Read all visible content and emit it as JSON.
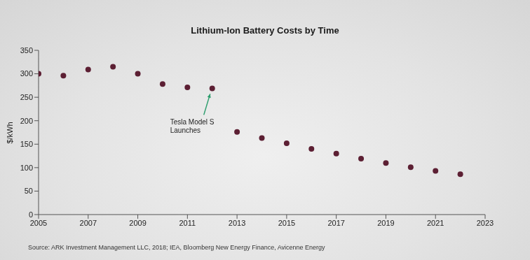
{
  "chart_data": {
    "type": "scatter",
    "title": "Lithium-Ion Battery Costs by Time",
    "y_label": "$/kWh",
    "source": "Source: ARK Investment Management LLC, 2018; IEA, Bloomberg New Energy Finance, Avicenne Energy",
    "x": [
      2005,
      2006,
      2007,
      2008,
      2009,
      2010,
      2011,
      2012,
      2013,
      2014,
      2015,
      2016,
      2017,
      2018,
      2019,
      2020,
      2021,
      2022
    ],
    "values": [
      300,
      296,
      309,
      315,
      300,
      278,
      271,
      269,
      176,
      163,
      152,
      140,
      130,
      119,
      110,
      101,
      93,
      86
    ],
    "color": "#5c1f33",
    "marker": "circle",
    "xlim": [
      2005,
      2023
    ],
    "xticks": [
      2005,
      2007,
      2009,
      2011,
      2013,
      2015,
      2017,
      2019,
      2021,
      2023
    ],
    "ylim": [
      0,
      350
    ],
    "yticks": [
      0,
      50,
      100,
      150,
      200,
      250,
      300,
      350
    ],
    "grid": false,
    "annotations": [
      {
        "text": "Tesla Model S Launches",
        "x": 2012,
        "color": "#2e9e6e"
      }
    ]
  }
}
